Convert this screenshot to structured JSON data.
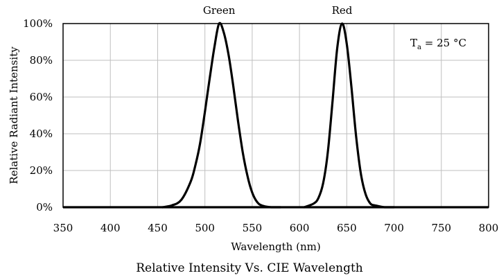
{
  "chart_data": {
    "type": "line",
    "title": "Relative Intensity Vs. CIE Wavelength",
    "xlabel": "Wavelength (nm)",
    "ylabel": "Relative Radiant Intensity",
    "xlim": [
      350,
      800
    ],
    "ylim": [
      0,
      100
    ],
    "x_ticks": [
      350,
      400,
      450,
      500,
      550,
      600,
      650,
      700,
      750,
      800
    ],
    "x_tick_labels": [
      "350",
      "400",
      "450",
      "500",
      "550",
      "600",
      "650",
      "700",
      "750",
      "800"
    ],
    "y_ticks": [
      0,
      20,
      40,
      60,
      80,
      100
    ],
    "y_tick_labels": [
      "0%",
      "20%",
      "40%",
      "60%",
      "80%",
      "100%"
    ],
    "grid": true,
    "line_color": "#000000",
    "grid_color": "#bfbfbf",
    "annotation": {
      "main": "T",
      "sub": "a",
      "rest": " = 25 °C"
    },
    "peak_labels": [
      "Green",
      "Red"
    ],
    "series": [
      {
        "name": "Green",
        "x": [
          455,
          465,
          475,
          485,
          490,
          495,
          500,
          505,
          510,
          515,
          520,
          525,
          530,
          535,
          540,
          545,
          550,
          555,
          560,
          570,
          580
        ],
        "y": [
          0,
          1,
          4,
          14,
          23,
          35,
          52,
          70,
          87,
          100,
          95,
          83,
          66,
          47,
          30,
          17,
          8,
          3,
          1,
          0,
          0
        ]
      },
      {
        "name": "Red",
        "x": [
          605,
          615,
          620,
          625,
          630,
          635,
          640,
          645,
          650,
          655,
          660,
          665,
          670,
          675,
          680,
          690,
          700
        ],
        "y": [
          0,
          2,
          5,
          13,
          30,
          58,
          87,
          100,
          89,
          65,
          38,
          18,
          7,
          2,
          1,
          0,
          0
        ]
      }
    ]
  }
}
